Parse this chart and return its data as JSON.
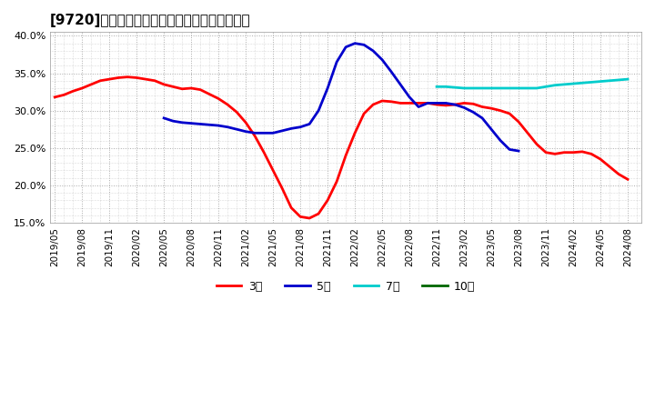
{
  "title": "[9720]　当期純利益マージンの標準偏差の推移",
  "background_color": "#ffffff",
  "plot_background": "#ffffff",
  "grid_color": "#aaaaaa",
  "ylim": [
    0.15,
    0.405
  ],
  "yticks": [
    0.15,
    0.2,
    0.25,
    0.3,
    0.35,
    0.4
  ],
  "series": {
    "3year": {
      "color": "#ff0000",
      "label": "3年",
      "x": [
        0,
        1,
        2,
        3,
        4,
        5,
        6,
        7,
        8,
        9,
        10,
        11,
        12,
        13,
        14,
        15,
        16,
        17,
        18,
        19,
        20,
        21,
        22,
        23,
        24,
        25,
        26,
        27,
        28,
        29,
        30,
        31,
        32,
        33,
        34,
        35,
        36,
        37,
        38,
        39,
        40,
        41,
        42,
        43,
        44,
        45,
        46,
        47,
        48,
        49,
        50,
        51,
        52,
        53,
        54,
        55,
        56,
        57,
        58,
        59,
        60,
        61,
        62,
        63
      ],
      "y": [
        0.318,
        0.321,
        0.326,
        0.33,
        0.335,
        0.34,
        0.342,
        0.344,
        0.345,
        0.344,
        0.342,
        0.34,
        0.335,
        0.332,
        0.329,
        0.33,
        0.328,
        0.322,
        0.316,
        0.308,
        0.298,
        0.284,
        0.266,
        0.244,
        0.22,
        0.196,
        0.17,
        0.158,
        0.156,
        0.162,
        0.18,
        0.205,
        0.24,
        0.27,
        0.296,
        0.308,
        0.313,
        0.312,
        0.31,
        0.31,
        0.31,
        0.31,
        0.308,
        0.307,
        0.308,
        0.31,
        0.309,
        0.305,
        0.303,
        0.3,
        0.296,
        0.285,
        0.27,
        0.255,
        0.244,
        0.242,
        0.244,
        0.244,
        0.245,
        0.242,
        0.235,
        0.225,
        0.215,
        0.208
      ]
    },
    "5year": {
      "color": "#0000cc",
      "label": "5年",
      "x": [
        12,
        13,
        14,
        15,
        16,
        17,
        18,
        19,
        20,
        21,
        22,
        23,
        24,
        25,
        26,
        27,
        28,
        29,
        30,
        31,
        32,
        33,
        34,
        35,
        36,
        37,
        38,
        39,
        40,
        41,
        42,
        43,
        44,
        45,
        46,
        47,
        48,
        49,
        50,
        51
      ],
      "y": [
        0.29,
        0.286,
        0.284,
        0.283,
        0.282,
        0.281,
        0.28,
        0.278,
        0.275,
        0.272,
        0.27,
        0.27,
        0.27,
        0.273,
        0.276,
        0.278,
        0.282,
        0.3,
        0.33,
        0.365,
        0.385,
        0.39,
        0.388,
        0.38,
        0.368,
        0.352,
        0.335,
        0.318,
        0.305,
        0.31,
        0.31,
        0.31,
        0.308,
        0.304,
        0.298,
        0.29,
        0.275,
        0.26,
        0.248,
        0.246
      ]
    },
    "7year": {
      "color": "#00cccc",
      "label": "7年",
      "x": [
        42,
        43,
        44,
        45,
        46,
        47,
        48,
        49,
        50,
        51,
        52,
        53,
        54,
        55,
        56,
        57,
        58,
        59,
        60,
        61,
        62,
        63
      ],
      "y": [
        0.332,
        0.332,
        0.331,
        0.33,
        0.33,
        0.33,
        0.33,
        0.33,
        0.33,
        0.33,
        0.33,
        0.33,
        0.332,
        0.334,
        0.335,
        0.336,
        0.337,
        0.338,
        0.339,
        0.34,
        0.341,
        0.342
      ]
    },
    "10year": {
      "color": "#006600",
      "label": "10年",
      "x": [],
      "y": []
    }
  },
  "xtick_positions": [
    0,
    3,
    6,
    9,
    12,
    15,
    18,
    21,
    24,
    27,
    30,
    33,
    36,
    39,
    42,
    45,
    48,
    51,
    54,
    57,
    60,
    63
  ],
  "xtick_labels": [
    "2019/05",
    "2019/08",
    "2019/11",
    "2020/02",
    "2020/05",
    "2020/08",
    "2020/11",
    "2021/02",
    "2021/05",
    "2021/08",
    "2021/11",
    "2022/02",
    "2022/05",
    "2022/08",
    "2022/11",
    "2023/02",
    "2023/05",
    "2023/08",
    "2023/11",
    "2024/02",
    "2024/05",
    "2024/08"
  ]
}
